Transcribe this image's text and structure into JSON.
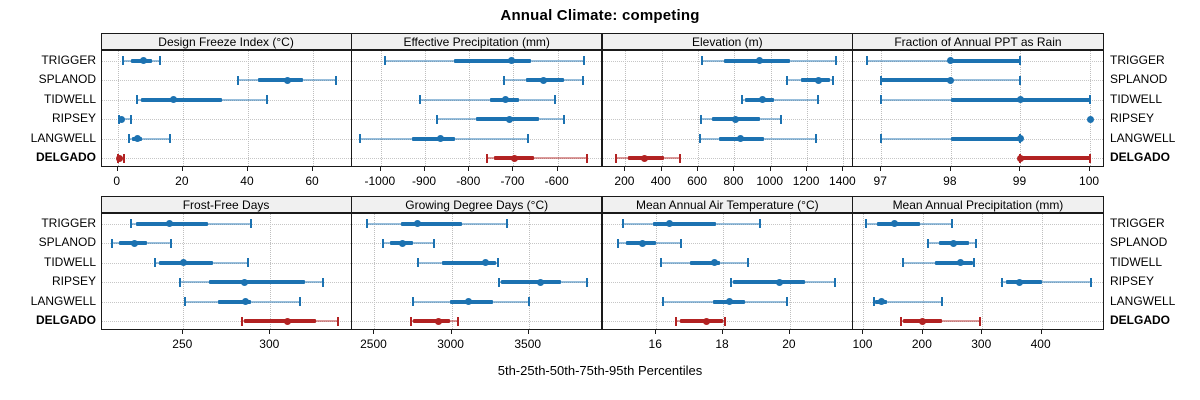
{
  "title": "Annual Climate: competing",
  "caption": "5th-25th-50th-75th-95th Percentiles",
  "stations": [
    "TRIGGER",
    "SPLANOD",
    "TIDWELL",
    "RIPSEY",
    "LANGWELL",
    "DELGADO"
  ],
  "highlight_station": "DELGADO",
  "colors": {
    "series": "#1c72b1",
    "highlight": "#b22222",
    "grid": "#bfbfbf",
    "strip_bg": "#f0f0f0",
    "border": "#1a1a1a"
  },
  "chart_data": {
    "type": "dotplot-interval",
    "percentiles": [
      5,
      25,
      50,
      75,
      95
    ],
    "legend_note": "thin line = 5th-95th with end caps, thick line = 25th-75th, dot = median",
    "panels": [
      {
        "title": "Design Freeze Index (°C)",
        "ticks": [
          0,
          20,
          40,
          60
        ],
        "xlim": [
          -5,
          72
        ],
        "values": [
          [
            1.5,
            4,
            8,
            10.5,
            13
          ],
          [
            37,
            43,
            52,
            57,
            67
          ],
          [
            6,
            7,
            17,
            32,
            46
          ],
          [
            0.3,
            0.5,
            1,
            2,
            4
          ],
          [
            3.5,
            4.5,
            6,
            7.5,
            16
          ],
          [
            0,
            0.1,
            0.4,
            1,
            2
          ]
        ]
      },
      {
        "title": "Effective Precipitation (mm)",
        "ticks": [
          -1000,
          -900,
          -800,
          -700,
          -600
        ],
        "xlim": [
          -1065,
          -498
        ],
        "values": [
          [
            -990,
            -835,
            -705,
            -660,
            -540
          ],
          [
            -722,
            -671,
            -632,
            -585,
            -542
          ],
          [
            -912,
            -754,
            -718,
            -687,
            -607
          ],
          [
            -872,
            -784,
            -708,
            -643,
            -586
          ],
          [
            -1047,
            -930,
            -865,
            -833,
            -668
          ],
          [
            -760,
            -745,
            -698,
            -654,
            -534
          ]
        ]
      },
      {
        "title": "Elevation (m)",
        "ticks": [
          200,
          400,
          600,
          800,
          1000,
          1200,
          1400
        ],
        "xlim": [
          75,
          1455
        ],
        "values": [
          [
            620,
            740,
            940,
            1105,
            1360
          ],
          [
            1090,
            1165,
            1265,
            1325,
            1345
          ],
          [
            840,
            860,
            955,
            1020,
            1260
          ],
          [
            615,
            675,
            805,
            940,
            1055
          ],
          [
            610,
            715,
            835,
            965,
            1250
          ],
          [
            150,
            215,
            305,
            415,
            500
          ]
        ]
      },
      {
        "title": "Fraction of Annual PPT as Rain",
        "ticks": [
          97,
          98,
          99,
          100
        ],
        "xlim": [
          96.6,
          100.2
        ],
        "values": [
          [
            96.8,
            98,
            98,
            99,
            99
          ],
          [
            97,
            97,
            98,
            98,
            99
          ],
          [
            97,
            98,
            99,
            100,
            100
          ],
          [
            100,
            100,
            100,
            100,
            100
          ],
          [
            97,
            98,
            99,
            99,
            99
          ],
          [
            99,
            99,
            99,
            100,
            100
          ]
        ]
      },
      {
        "title": "Frost-Free Days",
        "ticks": [
          250,
          300
        ],
        "xlim": [
          203,
          347
        ],
        "values": [
          [
            220,
            223,
            242,
            264,
            289
          ],
          [
            209,
            213,
            222,
            229,
            243
          ],
          [
            234,
            236,
            250,
            267,
            287
          ],
          [
            248,
            265,
            285,
            320,
            330
          ],
          [
            251,
            270,
            286,
            289,
            317
          ],
          [
            284,
            285,
            310,
            326,
            339
          ]
        ]
      },
      {
        "title": "Growing Degree Days (°C)",
        "ticks": [
          2500,
          3000,
          3500
        ],
        "xlim": [
          2355,
          3980
        ],
        "values": [
          [
            2450,
            2675,
            2780,
            3065,
            3360
          ],
          [
            2555,
            2600,
            2680,
            2750,
            2885
          ],
          [
            2785,
            2935,
            3220,
            3290,
            3300
          ],
          [
            3305,
            3320,
            3575,
            3710,
            3875
          ],
          [
            2750,
            2990,
            3110,
            3270,
            3500
          ],
          [
            2735,
            2750,
            2915,
            2990,
            3040
          ]
        ]
      },
      {
        "title": "Mean Annual Air Temperature (°C)",
        "ticks": [
          16,
          18,
          20
        ],
        "xlim": [
          14.4,
          21.9
        ],
        "values": [
          [
            15.0,
            15.9,
            16.4,
            17.8,
            19.1
          ],
          [
            14.85,
            15.1,
            15.6,
            16.0,
            16.75
          ],
          [
            16.15,
            17.0,
            17.75,
            17.9,
            18.75
          ],
          [
            18.25,
            18.3,
            19.7,
            20.45,
            21.35
          ],
          [
            16.2,
            17.7,
            18.2,
            18.65,
            19.9
          ],
          [
            16.6,
            16.7,
            17.5,
            18.0,
            18.05
          ]
        ]
      },
      {
        "title": "Mean Annual Precipitation (mm)",
        "ticks": [
          100,
          200,
          300,
          400
        ],
        "xlim": [
          83,
          505
        ],
        "values": [
          [
            104,
            123,
            153,
            196,
            249
          ],
          [
            209,
            228,
            251,
            277,
            290
          ],
          [
            166,
            220,
            264,
            284,
            286
          ],
          [
            333,
            340,
            363,
            400,
            483
          ],
          [
            117,
            119,
            130,
            140,
            233
          ],
          [
            164,
            167,
            200,
            233,
            297
          ]
        ]
      }
    ]
  }
}
